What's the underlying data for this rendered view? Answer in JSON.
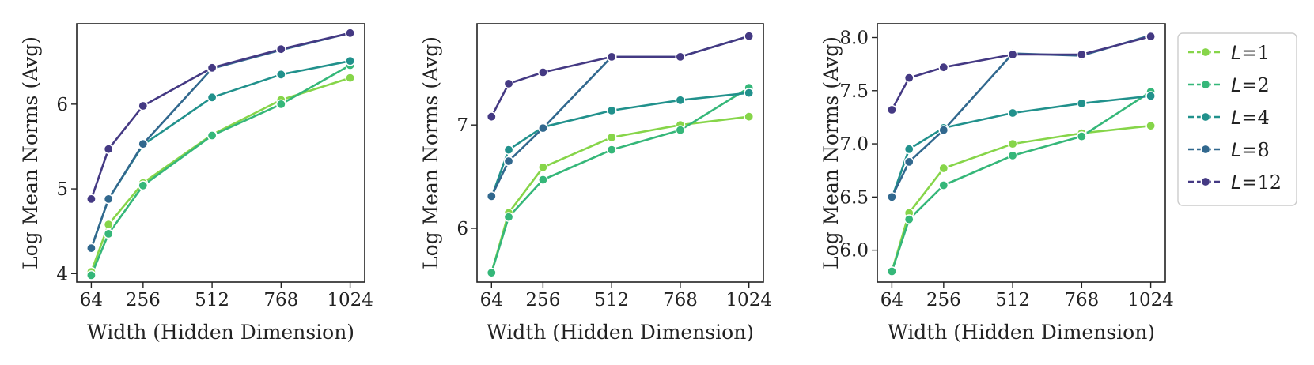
{
  "colors": {
    "L1": "#86d549",
    "L2": "#35b779",
    "L4": "#21918c",
    "L8": "#31688e",
    "L12": "#443983"
  },
  "legend": {
    "entries": [
      {
        "key": "L1",
        "label": "L=1",
        "var": "L",
        "value": "1"
      },
      {
        "key": "L2",
        "label": "L=2",
        "var": "L",
        "value": "2"
      },
      {
        "key": "L4",
        "label": "L=4",
        "var": "L",
        "value": "4"
      },
      {
        "key": "L8",
        "label": "L=8",
        "var": "L",
        "value": "8"
      },
      {
        "key": "L12",
        "label": "L=12",
        "var": "L",
        "value": "12"
      }
    ],
    "placement": "right"
  },
  "chart_data": [
    {
      "type": "line",
      "xlabel": "Width (Hidden Dimension)",
      "ylabel": "Log Mean Norms (Avg)",
      "x": [
        64,
        128,
        256,
        512,
        768,
        1024
      ],
      "xticks": [
        "64",
        "256",
        "512",
        "768",
        "1024"
      ],
      "xtick_values": [
        64,
        256,
        512,
        768,
        1024
      ],
      "yticks": [
        "4",
        "5",
        "6"
      ],
      "ytick_values": [
        4,
        5,
        6
      ],
      "xlim": [
        10,
        1078
      ],
      "ylim": [
        3.9,
        6.95
      ],
      "grid": false,
      "series": [
        {
          "key": "L1",
          "name": "L=1",
          "values": [
            4.02,
            4.58,
            5.07,
            5.64,
            6.05,
            6.31
          ]
        },
        {
          "key": "L2",
          "name": "L=2",
          "values": [
            3.98,
            4.47,
            5.04,
            5.63,
            6.0,
            6.46
          ]
        },
        {
          "key": "L4",
          "name": "L=4",
          "values": [
            4.3,
            4.88,
            5.52,
            6.08,
            6.35,
            6.51
          ]
        },
        {
          "key": "L8",
          "name": "L=8",
          "values": [
            4.3,
            4.88,
            5.53,
            6.42,
            6.64,
            6.84
          ]
        },
        {
          "key": "L12",
          "name": "L=12",
          "values": [
            4.88,
            5.47,
            5.98,
            6.43,
            6.65,
            6.84
          ]
        }
      ]
    },
    {
      "type": "line",
      "xlabel": "Width (Hidden Dimension)",
      "ylabel": "Log Mean Norms (Avg)",
      "x": [
        64,
        128,
        256,
        512,
        768,
        1024
      ],
      "xticks": [
        "64",
        "256",
        "512",
        "768",
        "1024"
      ],
      "xtick_values": [
        64,
        256,
        512,
        768,
        1024
      ],
      "yticks": [
        "6",
        "7"
      ],
      "ytick_values": [
        6,
        7
      ],
      "xlim": [
        10,
        1078
      ],
      "ylim": [
        5.48,
        7.98
      ],
      "grid": false,
      "series": [
        {
          "key": "L1",
          "name": "L=1",
          "values": [
            5.57,
            6.15,
            6.59,
            6.88,
            7.0,
            7.08
          ]
        },
        {
          "key": "L2",
          "name": "L=2",
          "values": [
            5.57,
            6.11,
            6.47,
            6.76,
            6.95,
            7.36
          ]
        },
        {
          "key": "L4",
          "name": "L=4",
          "values": [
            6.3,
            6.76,
            6.98,
            7.14,
            7.24,
            7.31
          ]
        },
        {
          "key": "L8",
          "name": "L=8",
          "values": [
            6.31,
            6.65,
            6.97,
            7.66,
            7.66,
            7.86
          ]
        },
        {
          "key": "L12",
          "name": "L=12",
          "values": [
            7.08,
            7.4,
            7.51,
            7.66,
            7.66,
            7.86
          ]
        }
      ]
    },
    {
      "type": "line",
      "xlabel": "Width (Hidden Dimension)",
      "ylabel": "Log Mean Norms (Avg)",
      "x": [
        64,
        128,
        256,
        512,
        768,
        1024
      ],
      "xticks": [
        "64",
        "256",
        "512",
        "768",
        "1024"
      ],
      "xtick_values": [
        64,
        256,
        512,
        768,
        1024
      ],
      "yticks": [
        "6.0",
        "6.5",
        "7.0",
        "7.5",
        "8.0"
      ],
      "ytick_values": [
        6.0,
        6.5,
        7.0,
        7.5,
        8.0
      ],
      "xlim": [
        10,
        1078
      ],
      "ylim": [
        5.7,
        8.13
      ],
      "grid": false,
      "series": [
        {
          "key": "L1",
          "name": "L=1",
          "values": [
            5.8,
            6.35,
            6.77,
            7.0,
            7.1,
            7.17
          ]
        },
        {
          "key": "L2",
          "name": "L=2",
          "values": [
            5.8,
            6.29,
            6.61,
            6.89,
            7.07,
            7.49
          ]
        },
        {
          "key": "L4",
          "name": "L=4",
          "values": [
            6.49,
            6.95,
            7.15,
            7.29,
            7.38,
            7.45
          ]
        },
        {
          "key": "L8",
          "name": "L=8",
          "values": [
            6.5,
            6.83,
            7.13,
            7.85,
            7.83,
            8.02
          ]
        },
        {
          "key": "L12",
          "name": "L=12",
          "values": [
            7.32,
            7.62,
            7.72,
            7.84,
            7.84,
            8.01
          ]
        }
      ]
    }
  ]
}
